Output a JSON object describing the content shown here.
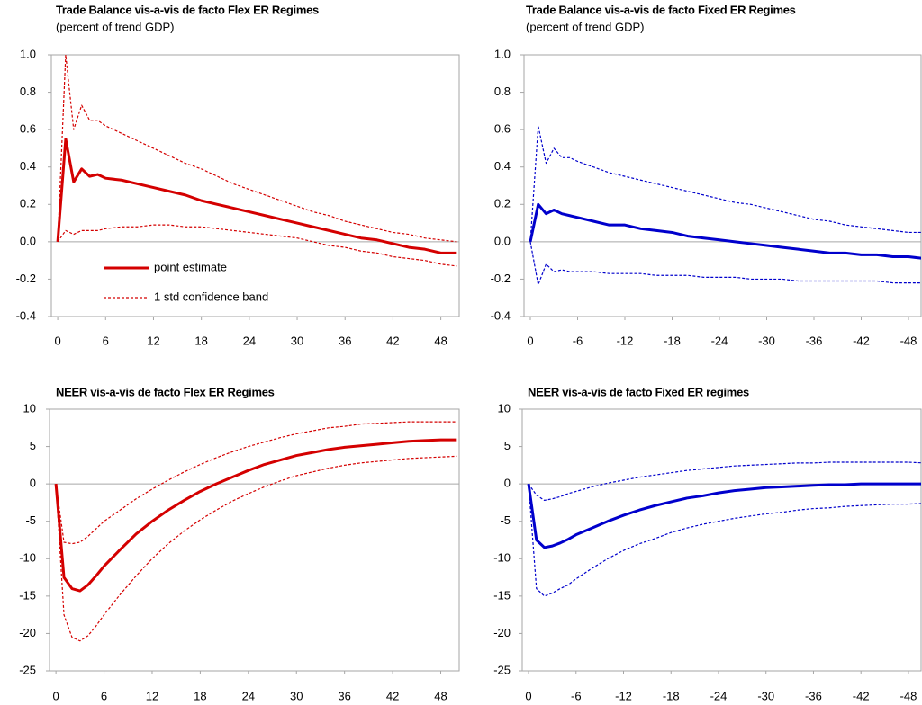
{
  "chart_data": [
    {
      "type": "line",
      "title": "Trade Balance vis-a-vis de facto Flex ER Regimes",
      "subtitle": "(percent of trend GDP)",
      "x": [
        0,
        1,
        2,
        3,
        4,
        5,
        6,
        8,
        10,
        12,
        14,
        16,
        18,
        20,
        22,
        24,
        26,
        28,
        30,
        32,
        34,
        36,
        38,
        40,
        42,
        44,
        46,
        48,
        50
      ],
      "xlim": [
        -0.8,
        50.3
      ],
      "xticks": [
        0,
        6,
        12,
        18,
        24,
        30,
        36,
        42,
        48
      ],
      "ylim": [
        -0.4,
        1.0
      ],
      "yticks": [
        {
          "value": 1,
          "label": "1.0"
        },
        0.8,
        0.6,
        0.4,
        0.2,
        {
          "value": 0,
          "label": "0.0"
        },
        -0.2,
        -0.4
      ],
      "zero_line": true,
      "legend": "lower left",
      "series": [
        {
          "name": "point estimate",
          "color": "#d40000",
          "dashed": false,
          "values": [
            0,
            0.55,
            0.32,
            0.39,
            0.35,
            0.36,
            0.34,
            0.33,
            0.31,
            0.29,
            0.27,
            0.25,
            0.22,
            0.2,
            0.18,
            0.16,
            0.14,
            0.12,
            0.1,
            0.08,
            0.06,
            0.04,
            0.02,
            0.01,
            -0.01,
            -0.03,
            -0.04,
            -0.06,
            -0.06
          ]
        },
        {
          "name": "1 std confidence band",
          "color": "#d40000",
          "dashed": true,
          "values": [
            0,
            1.0,
            0.6,
            0.73,
            0.65,
            0.65,
            0.62,
            0.58,
            0.54,
            0.5,
            0.46,
            0.42,
            0.39,
            0.35,
            0.31,
            0.28,
            0.25,
            0.22,
            0.19,
            0.16,
            0.14,
            0.11,
            0.09,
            0.07,
            0.05,
            0.04,
            0.02,
            0.01,
            0.0
          ]
        },
        {
          "color": "#d40000",
          "dashed": true,
          "values": [
            0,
            0.06,
            0.04,
            0.06,
            0.06,
            0.06,
            0.07,
            0.08,
            0.08,
            0.09,
            0.09,
            0.08,
            0.08,
            0.07,
            0.06,
            0.05,
            0.04,
            0.03,
            0.02,
            0.0,
            -0.02,
            -0.03,
            -0.05,
            -0.06,
            -0.08,
            -0.09,
            -0.1,
            -0.12,
            -0.13
          ]
        }
      ]
    },
    {
      "type": "line",
      "title": "Trade Balance vis-a-vis de facto Fixed ER Regimes",
      "subtitle": "(percent of trend GDP)",
      "x": [
        0,
        1,
        2,
        3,
        4,
        5,
        6,
        8,
        10,
        12,
        14,
        16,
        18,
        20,
        22,
        24,
        26,
        28,
        30,
        32,
        34,
        36,
        38,
        40,
        42,
        44,
        46,
        48,
        50
      ],
      "xlim": [
        -0.8,
        49.6
      ],
      "xticks": [
        0,
        {
          "value": 6,
          "label": "-6"
        },
        {
          "value": 12,
          "label": "-12"
        },
        {
          "value": 18,
          "label": "-18"
        },
        {
          "value": 24,
          "label": "-24"
        },
        {
          "value": 30,
          "label": "-30"
        },
        {
          "value": 36,
          "label": "-36"
        },
        {
          "value": 42,
          "label": "-42"
        },
        {
          "value": 48,
          "label": "-48"
        }
      ],
      "ylim": [
        -0.4,
        1.0
      ],
      "yticks": [
        {
          "value": 1,
          "label": "1.0"
        },
        0.8,
        0.6,
        0.4,
        0.2,
        {
          "value": 0,
          "label": "0.0"
        },
        -0.2,
        -0.4
      ],
      "zero_line": true,
      "series": [
        {
          "color": "#0000cc",
          "dashed": false,
          "values": [
            0,
            0.2,
            0.15,
            0.17,
            0.15,
            0.14,
            0.13,
            0.11,
            0.09,
            0.09,
            0.07,
            0.06,
            0.05,
            0.03,
            0.02,
            0.01,
            0.0,
            -0.01,
            -0.02,
            -0.03,
            -0.04,
            -0.05,
            -0.06,
            -0.06,
            -0.07,
            -0.07,
            -0.08,
            -0.08,
            -0.09
          ]
        },
        {
          "color": "#0000cc",
          "dashed": true,
          "values": [
            0,
            0.62,
            0.42,
            0.5,
            0.45,
            0.45,
            0.43,
            0.4,
            0.37,
            0.35,
            0.33,
            0.31,
            0.29,
            0.27,
            0.25,
            0.23,
            0.21,
            0.2,
            0.18,
            0.16,
            0.14,
            0.12,
            0.11,
            0.09,
            0.08,
            0.07,
            0.06,
            0.05,
            0.05
          ]
        },
        {
          "color": "#0000cc",
          "dashed": true,
          "values": [
            0,
            -0.23,
            -0.12,
            -0.16,
            -0.15,
            -0.16,
            -0.16,
            -0.16,
            -0.17,
            -0.17,
            -0.17,
            -0.18,
            -0.18,
            -0.18,
            -0.19,
            -0.19,
            -0.19,
            -0.2,
            -0.2,
            -0.2,
            -0.21,
            -0.21,
            -0.21,
            -0.21,
            -0.21,
            -0.21,
            -0.22,
            -0.22,
            -0.22
          ]
        }
      ]
    },
    {
      "type": "line",
      "title": "NEER vis-a-vis de facto Flex ER Regimes",
      "x": [
        0,
        1,
        2,
        3,
        4,
        5,
        6,
        8,
        10,
        12,
        14,
        16,
        18,
        20,
        22,
        24,
        26,
        28,
        30,
        32,
        34,
        36,
        38,
        40,
        42,
        44,
        46,
        48,
        50
      ],
      "xlim": [
        -0.8,
        50.3
      ],
      "xticks": [
        0,
        6,
        12,
        18,
        24,
        30,
        36,
        42,
        48
      ],
      "ylim": [
        -25,
        10
      ],
      "yticks": [
        10,
        5,
        0,
        -5,
        -10,
        -15,
        -20,
        -25
      ],
      "zero_line": true,
      "series": [
        {
          "color": "#d40000",
          "dashed": false,
          "values": [
            0,
            -12.5,
            -14,
            -14.3,
            -13.5,
            -12.3,
            -11,
            -8.8,
            -6.7,
            -5,
            -3.5,
            -2.2,
            -1,
            0,
            0.9,
            1.8,
            2.6,
            3.2,
            3.8,
            4.2,
            4.6,
            4.9,
            5.1,
            5.3,
            5.5,
            5.7,
            5.8,
            5.9,
            5.9
          ]
        },
        {
          "color": "#d40000",
          "dashed": true,
          "values": [
            0,
            -7.8,
            -8,
            -7.8,
            -7,
            -6,
            -5,
            -3.5,
            -2,
            -0.7,
            0.5,
            1.6,
            2.6,
            3.5,
            4.3,
            5,
            5.6,
            6.2,
            6.7,
            7.1,
            7.5,
            7.7,
            8,
            8.1,
            8.2,
            8.3,
            8.3,
            8.3,
            8.3
          ]
        },
        {
          "color": "#d40000",
          "dashed": true,
          "values": [
            0,
            -17.5,
            -20.5,
            -21,
            -20.3,
            -19,
            -17.5,
            -14.8,
            -12.3,
            -10,
            -8,
            -6.3,
            -4.8,
            -3.5,
            -2.3,
            -1.3,
            -0.4,
            0.4,
            1.1,
            1.6,
            2.1,
            2.5,
            2.8,
            3,
            3.2,
            3.4,
            3.5,
            3.6,
            3.7
          ]
        }
      ]
    },
    {
      "type": "line",
      "title": "NEER vis-a-vis de facto Fixed ER regimes",
      "x": [
        0,
        1,
        2,
        3,
        4,
        5,
        6,
        8,
        10,
        12,
        14,
        16,
        18,
        20,
        22,
        24,
        26,
        28,
        30,
        32,
        34,
        36,
        38,
        40,
        42,
        44,
        46,
        48,
        50
      ],
      "xlim": [
        -0.8,
        49.6
      ],
      "xticks": [
        0,
        {
          "value": 6,
          "label": "-6"
        },
        {
          "value": 12,
          "label": "-12"
        },
        {
          "value": 18,
          "label": "-18"
        },
        {
          "value": 24,
          "label": "-24"
        },
        {
          "value": 30,
          "label": "-30"
        },
        {
          "value": 36,
          "label": "-36"
        },
        {
          "value": 42,
          "label": "-42"
        },
        {
          "value": 48,
          "label": "-48"
        }
      ],
      "ylim": [
        -25,
        10
      ],
      "yticks": [
        10,
        5,
        0,
        -5,
        -10,
        -15,
        -20,
        -25
      ],
      "zero_line": true,
      "series": [
        {
          "color": "#0000cc",
          "dashed": false,
          "values": [
            0,
            -7.5,
            -8.5,
            -8.3,
            -7.9,
            -7.4,
            -6.8,
            -5.9,
            -5,
            -4.2,
            -3.5,
            -2.9,
            -2.4,
            -1.9,
            -1.6,
            -1.2,
            -0.9,
            -0.7,
            -0.5,
            -0.4,
            -0.3,
            -0.2,
            -0.1,
            -0.1,
            0,
            0,
            0,
            0,
            0
          ]
        },
        {
          "color": "#0000cc",
          "dashed": true,
          "values": [
            0,
            -1.5,
            -2.2,
            -2,
            -1.7,
            -1.3,
            -1,
            -0.4,
            0.1,
            0.5,
            0.9,
            1.2,
            1.5,
            1.8,
            2,
            2.2,
            2.4,
            2.5,
            2.6,
            2.7,
            2.8,
            2.8,
            2.9,
            2.9,
            2.9,
            2.9,
            2.9,
            2.9,
            2.8
          ]
        },
        {
          "color": "#0000cc",
          "dashed": true,
          "values": [
            0,
            -14,
            -15,
            -14.6,
            -14,
            -13.5,
            -12.7,
            -11.3,
            -10,
            -8.9,
            -8,
            -7.3,
            -6.5,
            -5.9,
            -5.4,
            -5,
            -4.6,
            -4.3,
            -4,
            -3.8,
            -3.5,
            -3.3,
            -3.2,
            -3,
            -2.9,
            -2.8,
            -2.7,
            -2.7,
            -2.6
          ]
        }
      ]
    }
  ]
}
